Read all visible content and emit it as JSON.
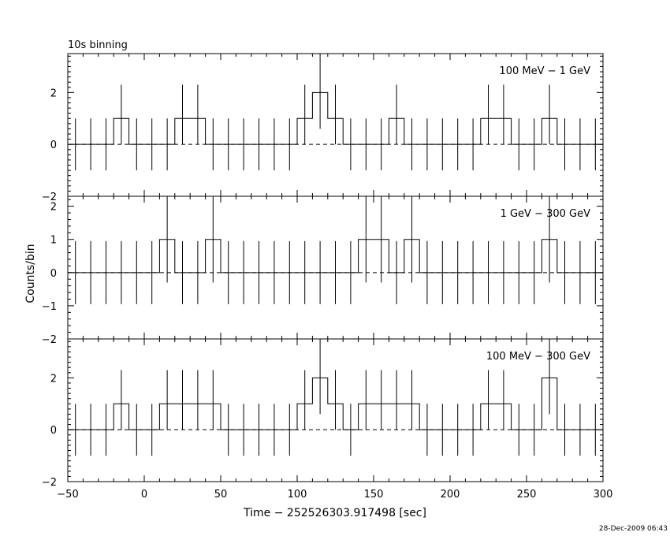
{
  "binning": "10s binning",
  "ylabel": "Counts/bin",
  "xlabel": "Time − 252526303.917498 [sec]",
  "timestamp": "28-Dec-2009 06:43",
  "xlim": [
    -50,
    300
  ],
  "x_ticks": [
    -50,
    0,
    50,
    100,
    150,
    200,
    250,
    300
  ],
  "x_tick_labels": [
    "−50",
    "0",
    "50",
    "100",
    "150",
    "200",
    "250",
    "300"
  ],
  "chart_data": [
    {
      "type": "line",
      "label": "100 MeV − 1 GeV",
      "ylim": [
        -2,
        3.5
      ],
      "y_ticks": [
        -2,
        0,
        2
      ],
      "y_tick_labels": [
        "−2",
        "0",
        "2"
      ],
      "bin_width": 10,
      "bin_starts": [
        -50,
        -40,
        -30,
        -20,
        -10,
        0,
        10,
        20,
        30,
        40,
        50,
        60,
        70,
        80,
        90,
        100,
        110,
        120,
        130,
        140,
        150,
        160,
        170,
        180,
        190,
        200,
        210,
        220,
        230,
        240,
        250,
        260,
        270,
        280,
        290
      ],
      "counts": [
        0,
        0,
        0,
        1,
        0,
        0,
        0,
        1,
        1,
        0,
        0,
        0,
        0,
        0,
        0,
        1,
        2,
        1,
        0,
        0,
        0,
        1,
        0,
        0,
        0,
        0,
        0,
        1,
        1,
        0,
        0,
        1,
        0,
        0,
        0
      ],
      "error_low": [
        -1,
        -1,
        -1,
        0,
        -1,
        -1,
        -1,
        0,
        0,
        -1,
        -1,
        -1,
        -1,
        -1,
        -1,
        0,
        0.6,
        0,
        -1,
        -1,
        -1,
        0,
        -1,
        -1,
        -1,
        -1,
        -1,
        0,
        0,
        -1,
        -1,
        0,
        -1,
        -1,
        -1
      ],
      "error_high": [
        1,
        1,
        1,
        2.3,
        1,
        1,
        1,
        2.3,
        2.3,
        1,
        1,
        1,
        1,
        1,
        1,
        2.3,
        3.6,
        2.3,
        1,
        1,
        1,
        2.3,
        1,
        1,
        1,
        1,
        1,
        2.3,
        2.3,
        1,
        1,
        2.3,
        1,
        1,
        1
      ],
      "background": 0
    },
    {
      "type": "line",
      "label": "1 GeV − 300 GeV",
      "ylim": [
        -2,
        2.3
      ],
      "y_ticks": [
        -2,
        -1,
        0,
        1,
        2
      ],
      "y_tick_labels": [
        "−2",
        "−1",
        "0",
        "1",
        "2"
      ],
      "bin_width": 10,
      "bin_starts": [
        -50,
        -40,
        -30,
        -20,
        -10,
        0,
        10,
        20,
        30,
        40,
        50,
        60,
        70,
        80,
        90,
        100,
        110,
        120,
        130,
        140,
        150,
        160,
        170,
        180,
        190,
        200,
        210,
        220,
        230,
        240,
        250,
        260,
        270,
        280,
        290
      ],
      "counts": [
        0,
        0,
        0,
        0,
        0,
        0,
        1,
        0,
        0,
        1,
        0,
        0,
        0,
        0,
        0,
        0,
        0,
        0,
        0,
        1,
        1,
        0,
        1,
        0,
        0,
        0,
        0,
        0,
        0,
        0,
        0,
        1,
        0,
        0,
        0
      ],
      "error_low": [
        -0.95,
        -0.95,
        -0.95,
        -0.95,
        -0.95,
        -0.95,
        -0.3,
        -0.95,
        -0.95,
        -0.3,
        -0.95,
        -0.95,
        -0.95,
        -0.95,
        -0.95,
        -0.95,
        -0.95,
        -0.95,
        -0.95,
        -0.3,
        -0.3,
        -0.95,
        -0.3,
        -0.95,
        -0.95,
        -0.95,
        -0.95,
        -0.95,
        -0.95,
        -0.95,
        -0.95,
        -0.3,
        -0.95,
        -0.95,
        -0.95
      ],
      "error_high": [
        0.95,
        0.95,
        0.95,
        0.95,
        0.95,
        0.95,
        2.3,
        0.95,
        0.95,
        2.3,
        0.95,
        0.95,
        0.95,
        0.95,
        0.95,
        0.95,
        0.95,
        0.95,
        0.95,
        2.3,
        2.3,
        0.95,
        2.3,
        0.95,
        0.95,
        0.95,
        0.95,
        0.95,
        0.95,
        0.95,
        0.95,
        2.3,
        0.95,
        0.95,
        0.95
      ],
      "background": 0
    },
    {
      "type": "line",
      "label": "100 MeV − 300 GeV",
      "ylim": [
        -2,
        3.5
      ],
      "y_ticks": [
        -2,
        0,
        2
      ],
      "y_tick_labels": [
        "−2",
        "0",
        "2"
      ],
      "bin_width": 10,
      "bin_starts": [
        -50,
        -40,
        -30,
        -20,
        -10,
        0,
        10,
        20,
        30,
        40,
        50,
        60,
        70,
        80,
        90,
        100,
        110,
        120,
        130,
        140,
        150,
        160,
        170,
        180,
        190,
        200,
        210,
        220,
        230,
        240,
        250,
        260,
        270,
        280,
        290
      ],
      "counts": [
        0,
        0,
        0,
        1,
        0,
        0,
        1,
        1,
        1,
        1,
        0,
        0,
        0,
        0,
        0,
        1,
        2,
        1,
        0,
        1,
        1,
        1,
        1,
        0,
        0,
        0,
        0,
        1,
        1,
        0,
        0,
        2,
        0,
        0,
        0
      ],
      "error_low": [
        -1,
        -1,
        -1,
        0,
        -1,
        -1,
        0,
        0,
        0,
        0,
        -1,
        -1,
        -1,
        -1,
        -1,
        0,
        0.6,
        0,
        -1,
        0,
        0,
        0,
        0,
        -1,
        -1,
        -1,
        -1,
        0,
        0,
        -1,
        -1,
        0.6,
        -1,
        -1,
        -1
      ],
      "error_high": [
        1,
        1,
        1,
        2.3,
        1,
        1,
        2.3,
        2.3,
        2.3,
        2.3,
        1,
        1,
        1,
        1,
        1,
        2.3,
        3.6,
        2.3,
        1,
        2.3,
        2.3,
        2.3,
        2.3,
        1,
        1,
        1,
        1,
        2.3,
        2.3,
        1,
        1,
        3.6,
        1,
        1,
        1
      ],
      "background": 0
    }
  ]
}
